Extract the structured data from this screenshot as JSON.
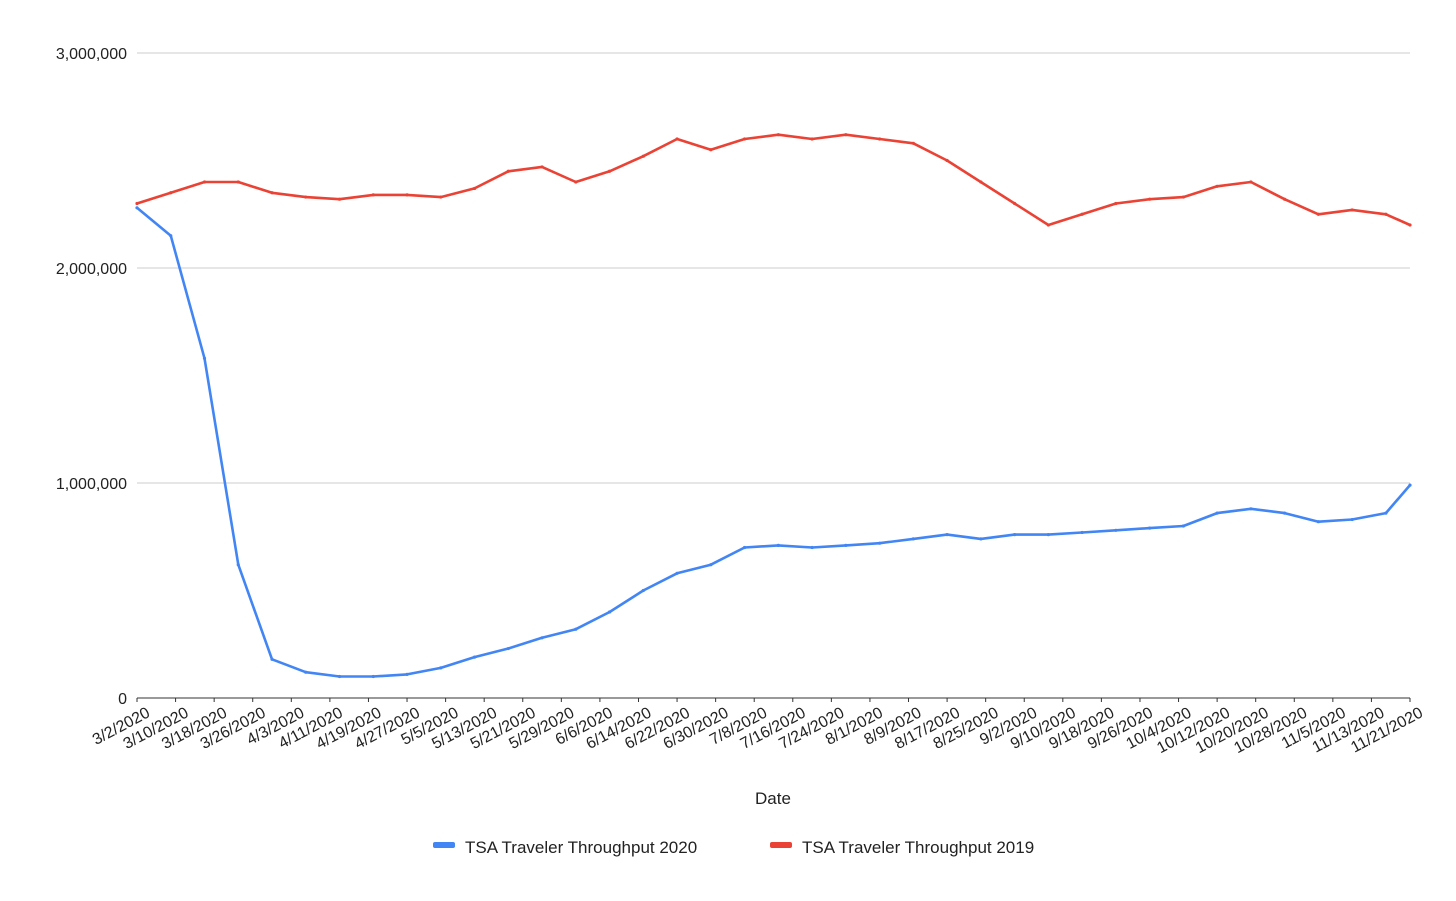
{
  "chart_data": {
    "type": "line",
    "title": "",
    "xlabel": "Date",
    "ylabel": "",
    "ylim": [
      0,
      3000000
    ],
    "y_ticks": [
      "0",
      "1,000,000",
      "2,000,000",
      "3,000,000"
    ],
    "y_tick_values": [
      0,
      1000000,
      2000000,
      3000000
    ],
    "x_start": "3/2/2020",
    "x_end": "11/21/2020",
    "x_tick_labels": [
      "3/2/2020",
      "3/10/2020",
      "3/18/2020",
      "3/26/2020",
      "4/3/2020",
      "4/11/2020",
      "4/19/2020",
      "4/27/2020",
      "5/5/2020",
      "5/13/2020",
      "5/21/2020",
      "5/29/2020",
      "6/6/2020",
      "6/14/2020",
      "6/22/2020",
      "6/30/2020",
      "7/8/2020",
      "7/16/2020",
      "7/24/2020",
      "8/1/2020",
      "8/9/2020",
      "8/17/2020",
      "8/25/2020",
      "9/2/2020",
      "9/10/2020",
      "9/18/2020",
      "9/26/2020",
      "10/4/2020",
      "10/12/2020",
      "10/20/2020",
      "10/28/2020",
      "11/5/2020",
      "11/13/2020",
      "11/21/2020"
    ],
    "grid": true,
    "legend_position": "bottom",
    "series": [
      {
        "name": "TSA Traveler Throughput 2020",
        "color": "#4285f4",
        "x": [
          "3/2/2020",
          "3/9/2020",
          "3/16/2020",
          "3/23/2020",
          "3/30/2020",
          "4/6/2020",
          "4/13/2020",
          "4/20/2020",
          "4/27/2020",
          "5/4/2020",
          "5/11/2020",
          "5/18/2020",
          "5/25/2020",
          "6/1/2020",
          "6/8/2020",
          "6/15/2020",
          "6/22/2020",
          "6/29/2020",
          "7/6/2020",
          "7/13/2020",
          "7/20/2020",
          "7/27/2020",
          "8/3/2020",
          "8/10/2020",
          "8/17/2020",
          "8/24/2020",
          "8/31/2020",
          "9/7/2020",
          "9/14/2020",
          "9/21/2020",
          "9/28/2020",
          "10/5/2020",
          "10/12/2020",
          "10/19/2020",
          "10/26/2020",
          "11/2/2020",
          "11/9/2020",
          "11/16/2020",
          "11/21/2020"
        ],
        "values": [
          2280000,
          2150000,
          1580000,
          620000,
          180000,
          120000,
          100000,
          100000,
          110000,
          140000,
          190000,
          230000,
          280000,
          320000,
          400000,
          500000,
          580000,
          620000,
          700000,
          710000,
          700000,
          710000,
          720000,
          740000,
          760000,
          740000,
          760000,
          760000,
          770000,
          780000,
          790000,
          800000,
          860000,
          880000,
          860000,
          820000,
          830000,
          860000,
          990000
        ]
      },
      {
        "name": "TSA Traveler Throughput 2019",
        "color": "#ea4335",
        "x": [
          "3/2/2020",
          "3/9/2020",
          "3/16/2020",
          "3/23/2020",
          "3/30/2020",
          "4/6/2020",
          "4/13/2020",
          "4/20/2020",
          "4/27/2020",
          "5/4/2020",
          "5/11/2020",
          "5/18/2020",
          "5/25/2020",
          "6/1/2020",
          "6/8/2020",
          "6/15/2020",
          "6/22/2020",
          "6/29/2020",
          "7/6/2020",
          "7/13/2020",
          "7/20/2020",
          "7/27/2020",
          "8/3/2020",
          "8/10/2020",
          "8/17/2020",
          "8/24/2020",
          "8/31/2020",
          "9/7/2020",
          "9/14/2020",
          "9/21/2020",
          "9/28/2020",
          "10/5/2020",
          "10/12/2020",
          "10/19/2020",
          "10/26/2020",
          "11/2/2020",
          "11/9/2020",
          "11/16/2020",
          "11/21/2020"
        ],
        "values": [
          2300000,
          2350000,
          2400000,
          2400000,
          2350000,
          2330000,
          2320000,
          2340000,
          2340000,
          2330000,
          2370000,
          2450000,
          2470000,
          2400000,
          2450000,
          2520000,
          2600000,
          2550000,
          2600000,
          2620000,
          2600000,
          2620000,
          2600000,
          2580000,
          2500000,
          2400000,
          2300000,
          2200000,
          2250000,
          2300000,
          2320000,
          2330000,
          2380000,
          2400000,
          2320000,
          2250000,
          2270000,
          2250000,
          2200000
        ]
      }
    ]
  }
}
